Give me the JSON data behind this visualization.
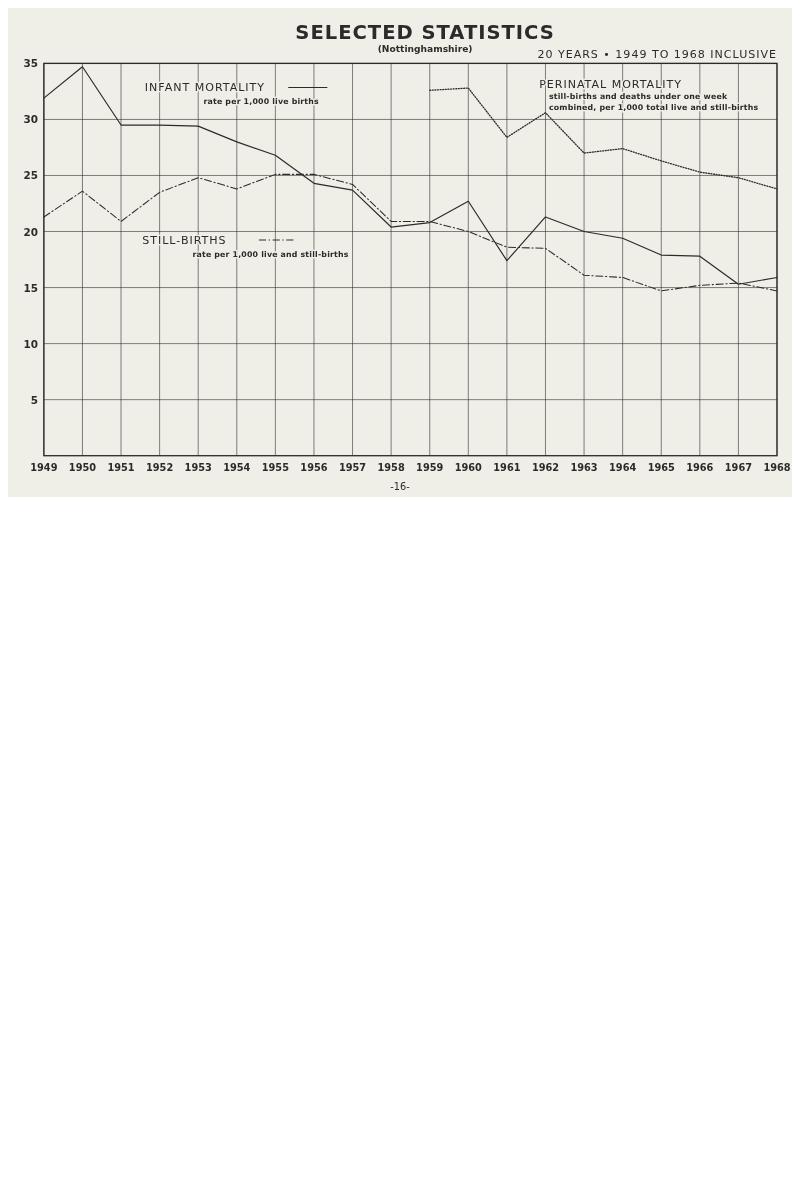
{
  "chart_data": {
    "type": "line",
    "title": "SELECTED STATISTICS",
    "subtitle": "(Nottinghamshire)",
    "annotations": [
      "20 YEARS • 1949 TO 1968 INCLUSIVE",
      "rate per 1,000 live births",
      "rate per 1,000 live and still-births",
      "still-births and deaths under one week",
      "combined, per 1,000 total live and still-births",
      "-16-"
    ],
    "x": [
      1949,
      1950,
      1951,
      1952,
      1953,
      1954,
      1955,
      1956,
      1957,
      1958,
      1959,
      1960,
      1961,
      1962,
      1963,
      1964,
      1965,
      1966,
      1967,
      1968
    ],
    "series": [
      {
        "name": "INFANT MORTALITY",
        "color": "#2b2b2b",
        "line_style": "solid",
        "values": [
          31.9,
          34.7,
          29.5,
          29.5,
          29.4,
          28.0,
          26.8,
          24.3,
          23.7,
          20.4,
          20.8,
          22.7,
          17.4,
          21.3,
          20.0,
          19.4,
          17.9,
          17.8,
          15.3,
          15.9
        ]
      },
      {
        "name": "STILL-BIRTHS",
        "color": "#2b2b2b",
        "line_style": "dashed",
        "values": [
          21.3,
          23.6,
          20.9,
          23.5,
          24.8,
          23.8,
          25.1,
          25.1,
          24.2,
          20.9,
          20.9,
          20.0,
          18.6,
          18.5,
          16.1,
          15.9,
          14.7,
          15.2,
          15.4,
          14.7
        ]
      },
      {
        "name": "PERINATAL MORTALITY",
        "color": "#2b2b2b",
        "line_style": "dotted",
        "x": [
          1959,
          1960,
          1961,
          1962,
          1963,
          1964,
          1965,
          1966,
          1967,
          1968
        ],
        "values": [
          32.6,
          32.8,
          28.4,
          30.6,
          27.0,
          27.4,
          26.3,
          25.3,
          24.8,
          23.8
        ]
      }
    ],
    "xlim": [
      1949,
      1968
    ],
    "ylim": [
      0,
      35
    ],
    "xticks": [
      1949,
      1950,
      1951,
      1952,
      1953,
      1954,
      1955,
      1956,
      1957,
      1958,
      1959,
      1960,
      1961,
      1962,
      1963,
      1964,
      1965,
      1966,
      1967,
      1968
    ],
    "yticks": [
      5,
      10,
      15,
      20,
      25,
      30,
      35
    ],
    "grid": true
  }
}
